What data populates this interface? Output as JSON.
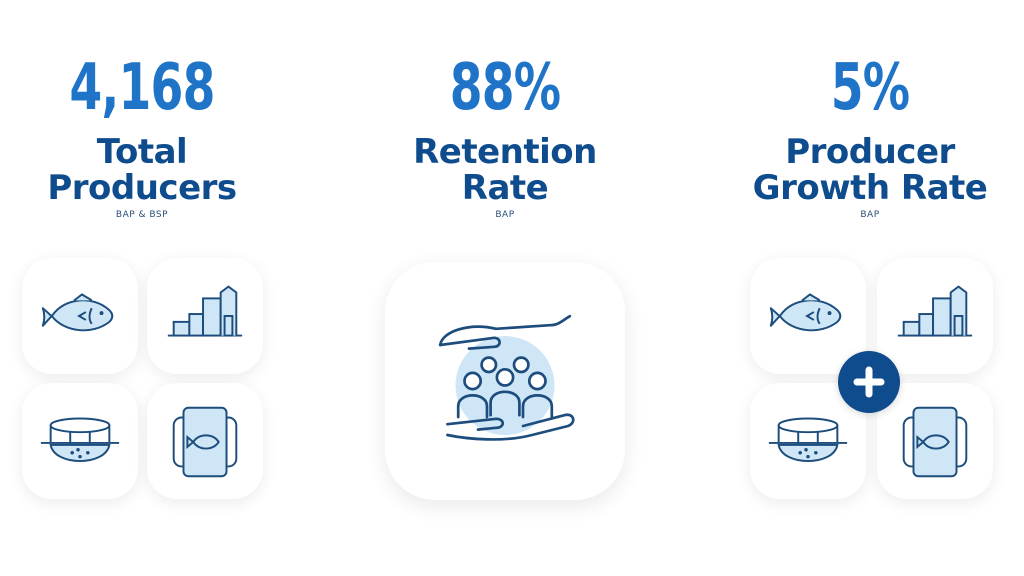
{
  "stats": [
    {
      "value": "4,168",
      "title_line1": "Total",
      "title_line2": "Producers",
      "subtitle": "BAP & BSP"
    },
    {
      "value": "88%",
      "title_line1": "Retention",
      "title_line2": "Rate",
      "subtitle": "BAP"
    },
    {
      "value": "5%",
      "title_line1": "Producer",
      "title_line2": "Growth Rate",
      "subtitle": "BAP"
    }
  ],
  "icons": {
    "tiles": [
      "fish-icon",
      "processing-plant-icon",
      "net-pen-icon",
      "feed-bag-icon"
    ],
    "center": "hands-holding-people-icon",
    "combine": "plus-icon"
  },
  "colors": {
    "value": "#1f74c8",
    "title": "#0f4c8e",
    "icon_stroke": "#1d4d7d",
    "icon_fill": "#cfe6f7",
    "plus_badge": "#0f4c8e"
  }
}
